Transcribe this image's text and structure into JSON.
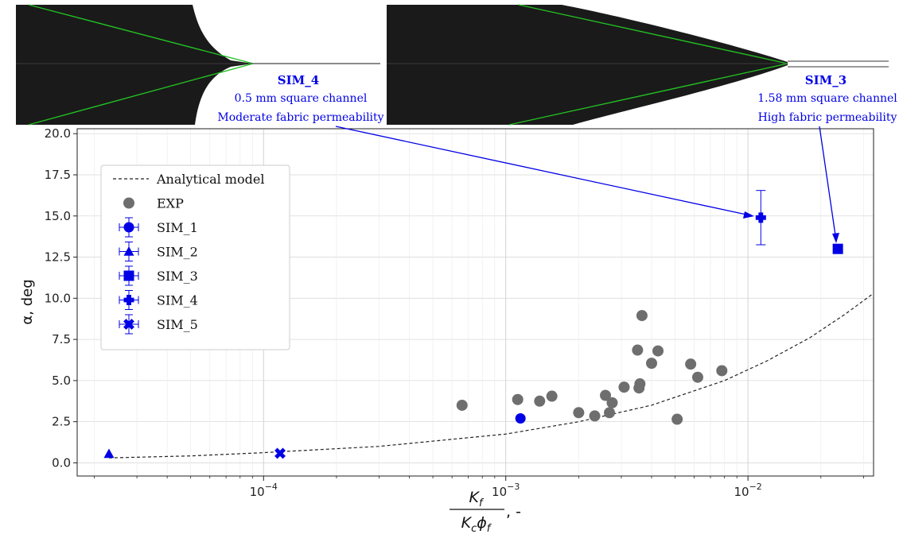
{
  "images": [
    {
      "label": "SIM_4",
      "lines": [
        "0.5 mm square channel",
        "Moderate fabric permeability"
      ]
    },
    {
      "label": "SIM_3",
      "lines": [
        "1.58 mm square channel",
        "High fabric permeability"
      ]
    }
  ],
  "colors": {
    "exp": "#6e6e6e",
    "sim": "#0000e6",
    "model": "#222222",
    "front": "#1a1a1a",
    "fit_line": "#22c022"
  },
  "chart_data": {
    "type": "scatter",
    "xscale": "log",
    "xlim": [
      1.7e-05,
      0.033
    ],
    "ylim": [
      -0.8,
      20.3
    ],
    "yticks": [
      "0.0",
      "2.5",
      "5.0",
      "7.5",
      "10.0",
      "12.5",
      "15.0",
      "17.5",
      "20.0"
    ],
    "xticks": [
      {
        "value": 0.0001,
        "base": "10",
        "exp": "−4"
      },
      {
        "value": 0.001,
        "base": "10",
        "exp": "−3"
      },
      {
        "value": 0.01,
        "base": "10",
        "exp": "−2"
      }
    ],
    "ylabel": "α, deg",
    "xlabel": {
      "num": "K",
      "num_sub": "f",
      "den": "K",
      "den_sub": "c",
      "phi": "ϕ",
      "phi_sub": "f",
      "suffix": ", -"
    },
    "grid": true,
    "legend_placement": "upper-left",
    "series": [
      {
        "name": "Analytical model",
        "kind": "line",
        "x": [
          2.3e-05,
          5e-05,
          0.0001,
          0.0003,
          0.001,
          0.002,
          0.004,
          0.008,
          0.012,
          0.018,
          0.025,
          0.033
        ],
        "y": [
          0.3,
          0.42,
          0.62,
          1.0,
          1.75,
          2.5,
          3.5,
          5.0,
          6.2,
          7.6,
          9.0,
          10.3
        ]
      },
      {
        "name": "EXP",
        "kind": "scatter",
        "marker": "circle",
        "points": [
          [
            0.00066,
            3.5
          ],
          [
            0.00112,
            3.85
          ],
          [
            0.00138,
            3.75
          ],
          [
            0.00155,
            4.05
          ],
          [
            0.002,
            3.05
          ],
          [
            0.00233,
            2.85
          ],
          [
            0.00258,
            4.1
          ],
          [
            0.00268,
            3.05
          ],
          [
            0.00275,
            3.65
          ],
          [
            0.00308,
            4.6
          ],
          [
            0.0035,
            6.85
          ],
          [
            0.00355,
            4.55
          ],
          [
            0.00358,
            4.8
          ],
          [
            0.00365,
            8.95
          ],
          [
            0.004,
            6.05
          ],
          [
            0.00425,
            6.8
          ],
          [
            0.0051,
            2.65
          ],
          [
            0.0058,
            6.0
          ],
          [
            0.0062,
            5.2
          ],
          [
            0.0078,
            5.6
          ]
        ]
      },
      {
        "name": "SIM_1",
        "kind": "errorbar",
        "marker": "circle",
        "points": [
          [
            0.00115,
            2.7
          ]
        ]
      },
      {
        "name": "SIM_2",
        "kind": "errorbar",
        "marker": "triangle",
        "points": [
          [
            2.3e-05,
            0.55
          ]
        ]
      },
      {
        "name": "SIM_3",
        "kind": "errorbar",
        "marker": "square",
        "points": [
          [
            0.0235,
            13.0
          ]
        ]
      },
      {
        "name": "SIM_4",
        "kind": "errorbar",
        "marker": "plus",
        "points": [
          [
            0.0113,
            14.9
          ]
        ],
        "yerr": [
          1.65
        ]
      },
      {
        "name": "SIM_5",
        "kind": "errorbar",
        "marker": "x",
        "points": [
          [
            0.000117,
            0.58
          ]
        ]
      }
    ]
  }
}
